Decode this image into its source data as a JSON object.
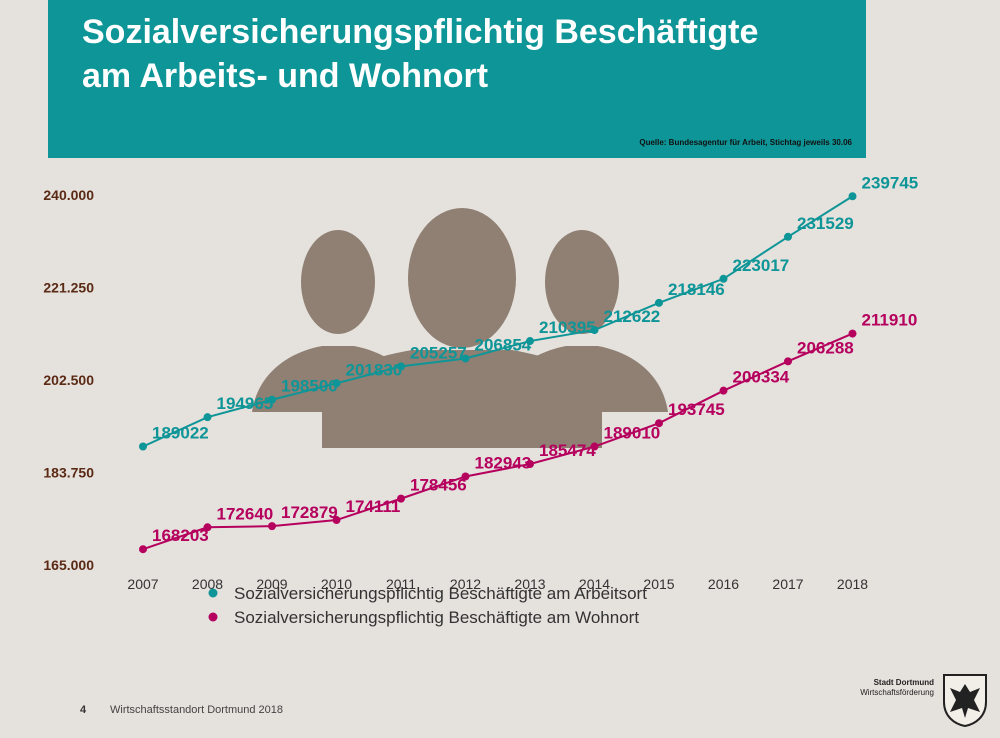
{
  "header": {
    "title_line1": "Sozialversicherungspflichtig Beschäftigte",
    "title_line2": "am Arbeits- und Wohnort",
    "source": "Quelle: Bundesagentur für Arbeit, Stichtag jeweils 30.06"
  },
  "chart_data": {
    "type": "line",
    "x": [
      "2007",
      "2008",
      "2009",
      "2010",
      "2011",
      "2012",
      "2013",
      "2014",
      "2015",
      "2016",
      "2017",
      "2018"
    ],
    "ylim": [
      165000,
      240000
    ],
    "yticks": [
      165000,
      183750,
      202500,
      221250,
      240000
    ],
    "ytick_labels": [
      "165.000",
      "183.750",
      "202.500",
      "221.250",
      "240.000"
    ],
    "legend_position": "bottom",
    "grid": false,
    "series": [
      {
        "name": "Sozialversicherungspflichtig Beschäftigte am Arbeitsort",
        "color": "#0e9597",
        "values": [
          189022,
          194965,
          198500,
          201830,
          205257,
          206854,
          210395,
          212622,
          218146,
          223017,
          231529,
          239745
        ],
        "labels": [
          "189022",
          "194965",
          "198500",
          "201830",
          "205257",
          "206854",
          "210395",
          "212622",
          "218146",
          "223017",
          "231529",
          "239745"
        ]
      },
      {
        "name": "Sozialversicherungspflichtig Beschäftigte am Wohnort",
        "color": "#b5005e",
        "values": [
          168203,
          172640,
          172879,
          174111,
          178456,
          182943,
          185474,
          189010,
          193745,
          200334,
          206288,
          211910
        ],
        "labels": [
          "168203",
          "172640",
          "172879",
          "174111",
          "178456",
          "182943",
          "185474",
          "189010",
          "193745",
          "200334",
          "206288",
          "211910"
        ]
      }
    ]
  },
  "footer": {
    "page_number": "4",
    "text": "Wirtschaftsstandort Dortmund 2018",
    "logo_line1": "Stadt Dortmund",
    "logo_line2": "Wirtschaftsförderung"
  },
  "icons": {
    "people": "people-group-icon",
    "crest": "dortmund-eagle-crest-icon"
  }
}
